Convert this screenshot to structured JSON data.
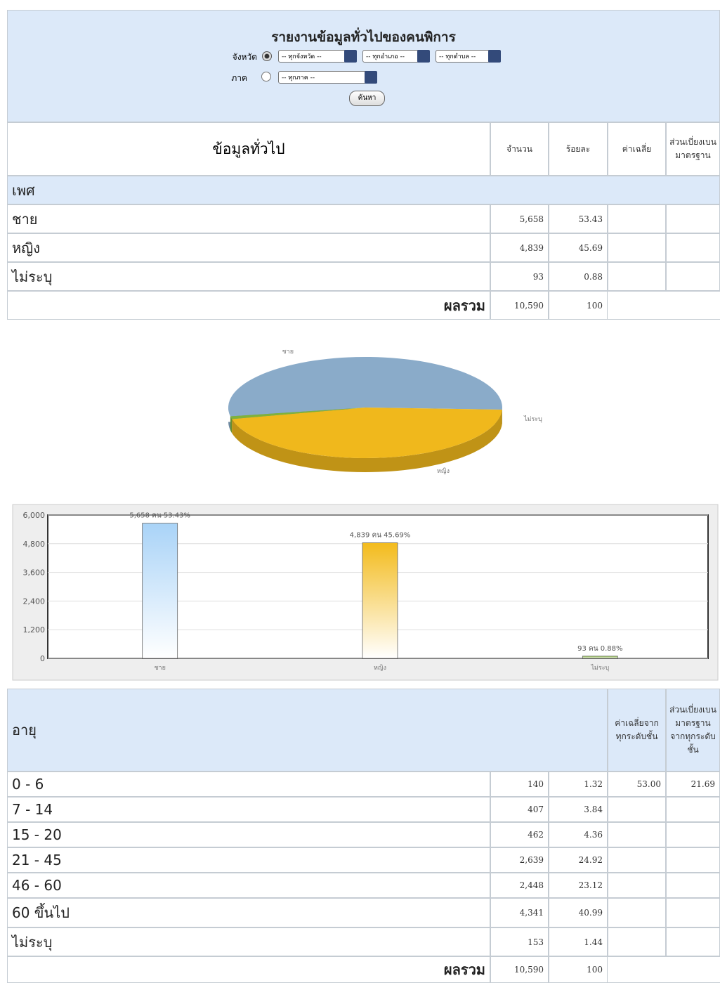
{
  "header": {
    "title": "รายงานข้อมูลทั่วไปของคนพิการ",
    "province_label": "จังหวัด",
    "province_select": "-- ทุกจังหวัด --",
    "district_select": "-- ทุกอำเภอ --",
    "subdistrict_select": "-- ทุกตำบล --",
    "region_label": "ภาค",
    "region_select": "-- ทุกภาค --",
    "search_button": "ค้นหา"
  },
  "table": {
    "columns": [
      "ข้อมูลทั่วไป",
      "จำนวน",
      "ร้อยละ",
      "ค่าเฉลี่ย",
      "ส่วนเบี่ยงเบนมาตรฐาน"
    ],
    "section": "เพศ",
    "rows": [
      [
        "ชาย",
        "5,658",
        "53.43"
      ],
      [
        "หญิง",
        "4,839",
        "45.69"
      ],
      [
        "ไม่ระบุ",
        "93",
        "0.88"
      ]
    ],
    "total": [
      "ผลรวม",
      "10,590",
      "100"
    ]
  },
  "pie_chart": {
    "type": "pie",
    "categories": [
      "ชาย",
      "หญิง",
      "ไม่ระบุ"
    ],
    "values": [
      53.43,
      45.69,
      0.88
    ],
    "colors": [
      "#8aabc9",
      "#f0b81c",
      "#7fb23a"
    ]
  },
  "bar_chart": {
    "type": "bar",
    "categories": [
      "ชาย",
      "หญิง",
      "ไม่ระบุ"
    ],
    "values": [
      5658,
      4839,
      93
    ],
    "value_labels": [
      "5,658 คน 53.43%",
      "4,839 คน 45.69%",
      "93 คน 0.88%"
    ],
    "colors": [
      "#a9d3f7",
      "#f3bb1c",
      "#8cbf3f"
    ],
    "ylim": [
      0,
      6000
    ],
    "yticks": [
      0,
      {
        "value": 1200,
        "label": "1,200"
      },
      {
        "value": 2400,
        "label": "2,400"
      },
      {
        "value": 3600,
        "label": "3,600"
      },
      {
        "value": 4800,
        "label": "4,800"
      },
      {
        "value": 6000,
        "label": "6,000"
      }
    ],
    "grid": true
  },
  "age_table": {
    "columns": [
      "อายุ",
      "ค่าเฉลี่ยจากทุกระดับชั้น",
      "ส่วนเบี่ยงเบนมาตรฐานจากทุกระดับชั้น"
    ],
    "rows": [
      [
        "0 - 6",
        "140",
        "1.32",
        "53.00",
        "21.69"
      ],
      [
        "7 - 14",
        "407",
        "3.84"
      ],
      [
        "15 - 20",
        "462",
        "4.36"
      ],
      [
        "21 - 45",
        "2,639",
        "24.92"
      ],
      [
        "46 - 60",
        "2,448",
        "23.12"
      ],
      [
        "60 ขึ้นไป",
        "4,341",
        "40.99"
      ],
      [
        "ไม่ระบุ",
        "153",
        "1.44"
      ]
    ],
    "total": [
      "ผลรวม",
      "10,590",
      "100"
    ]
  }
}
